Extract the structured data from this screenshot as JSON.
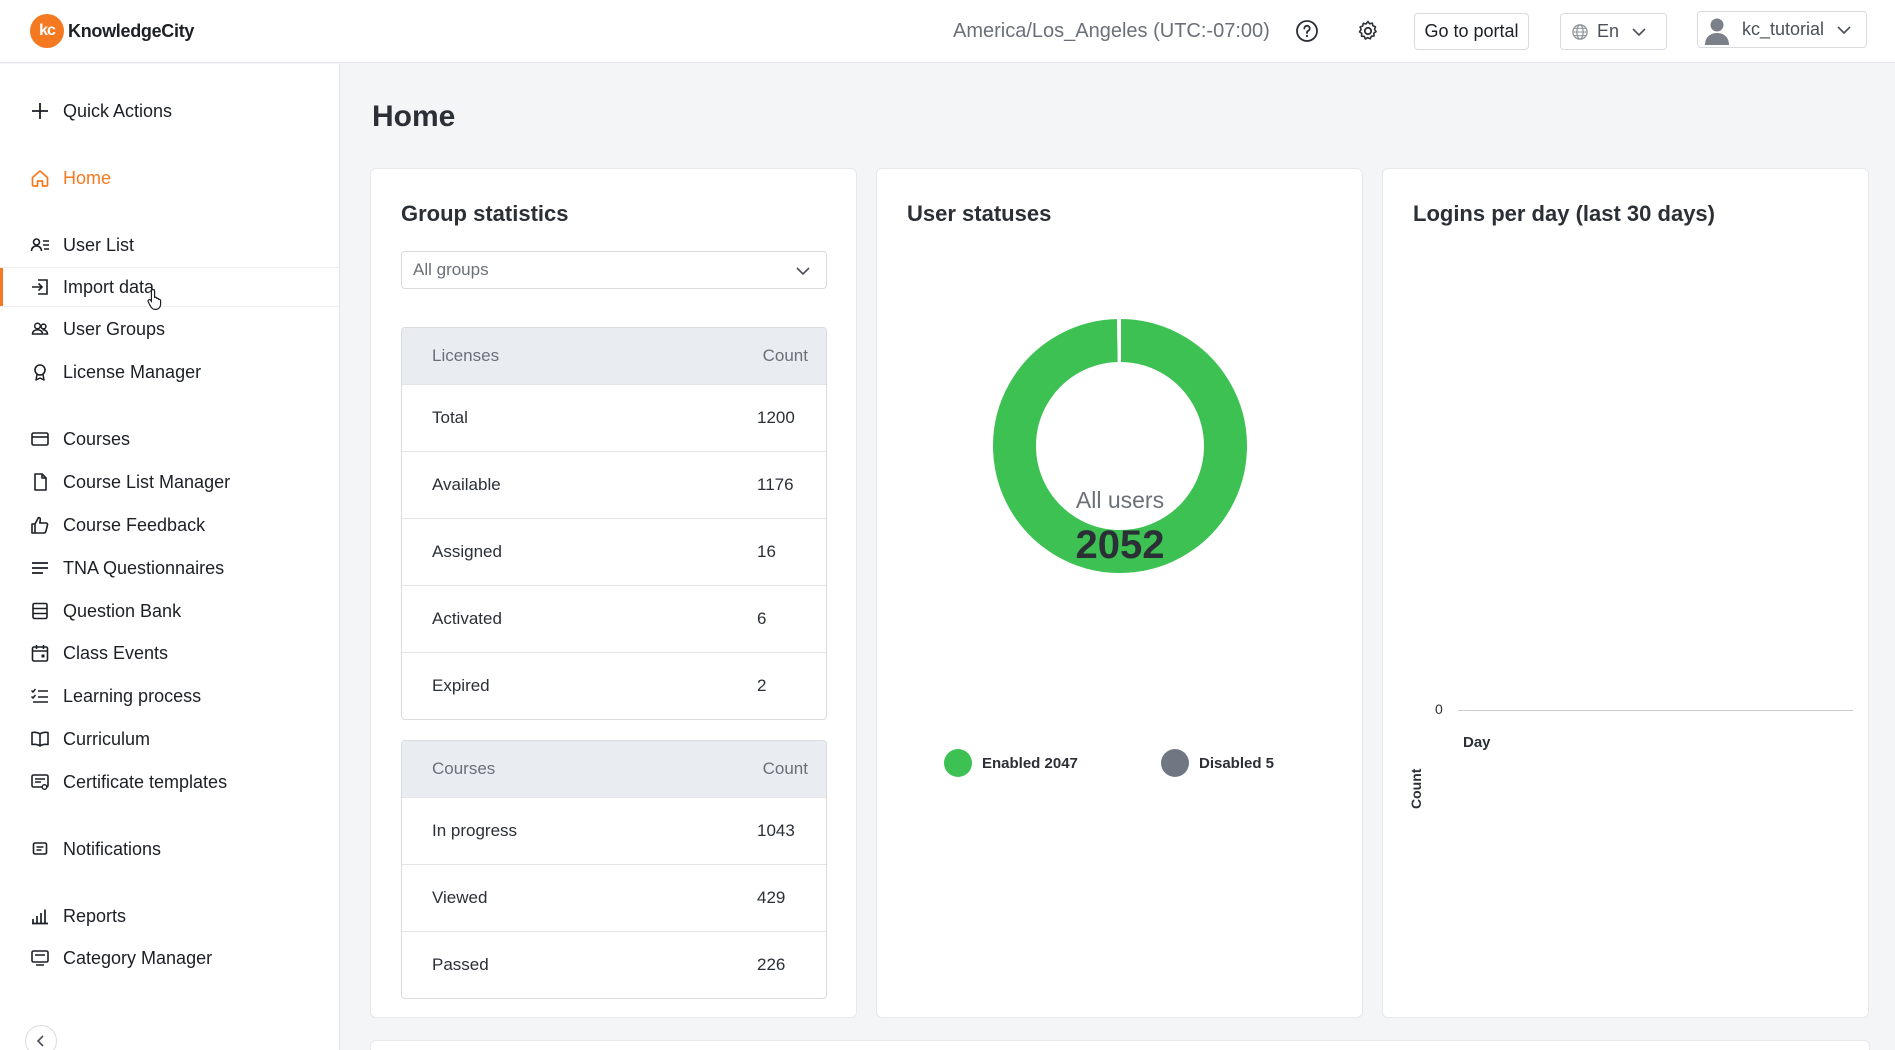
{
  "header": {
    "logo_mark": "kc",
    "brand": "KnowledgeCity",
    "timezone": "America/Los_Angeles (UTC:-07:00)",
    "help_icon": "help-icon",
    "settings_icon": "gear-icon",
    "portal_button": "Go to portal",
    "language": "En",
    "username": "kc_tutorial"
  },
  "sidebar": {
    "quick_actions": "Quick Actions",
    "items": {
      "home": "Home",
      "user_list": "User List",
      "import_data": "Import data",
      "user_groups": "User Groups",
      "license_manager": "License Manager",
      "courses": "Courses",
      "course_list_manager": "Course List Manager",
      "course_feedback": "Course Feedback",
      "tna": "TNA Questionnaires",
      "question_bank": "Question Bank",
      "class_events": "Class Events",
      "learning_process": "Learning process",
      "curriculum": "Curriculum",
      "certificate_templates": "Certificate templates",
      "notifications": "Notifications",
      "reports": "Reports",
      "category_manager": "Category Manager"
    },
    "active_item": "home",
    "accent_color": "#f47920"
  },
  "main": {
    "page_title": "Home",
    "group_stats": {
      "title": "Group statistics",
      "filter_value": "All groups",
      "licenses": {
        "header": [
          "Licenses",
          "Count"
        ],
        "rows": [
          {
            "label": "Total",
            "value": "1200"
          },
          {
            "label": "Available",
            "value": "1176"
          },
          {
            "label": "Assigned",
            "value": "16"
          },
          {
            "label": "Activated",
            "value": "6"
          },
          {
            "label": "Expired",
            "value": "2"
          }
        ]
      },
      "courses": {
        "header": [
          "Courses",
          "Count"
        ],
        "rows": [
          {
            "label": "In progress",
            "value": "1043"
          },
          {
            "label": "Viewed",
            "value": "429"
          },
          {
            "label": "Passed",
            "value": "226"
          }
        ]
      }
    },
    "user_statuses": {
      "title": "User statuses",
      "center_label": "All users",
      "center_value": "2052",
      "legend": [
        {
          "label": "Enabled 2047",
          "color": "#3dc153"
        },
        {
          "label": "Disabled 5",
          "color": "#6f7882"
        }
      ]
    },
    "logins": {
      "title": "Logins per day (last 30 days)",
      "ylabel": "Count",
      "xlabel": "Day",
      "tick": "0"
    }
  },
  "chart_data": [
    {
      "type": "pie",
      "categories": [
        "Enabled",
        "Disabled"
      ],
      "values": [
        2047,
        5
      ],
      "colors": [
        "#3dc153",
        "#6f7882"
      ]
    },
    {
      "type": "line",
      "title": "Logins per day (last 30 days)",
      "xlabel": "Day",
      "ylabel": "Count",
      "x": [],
      "values": [],
      "yticks": [
        0
      ]
    }
  ]
}
